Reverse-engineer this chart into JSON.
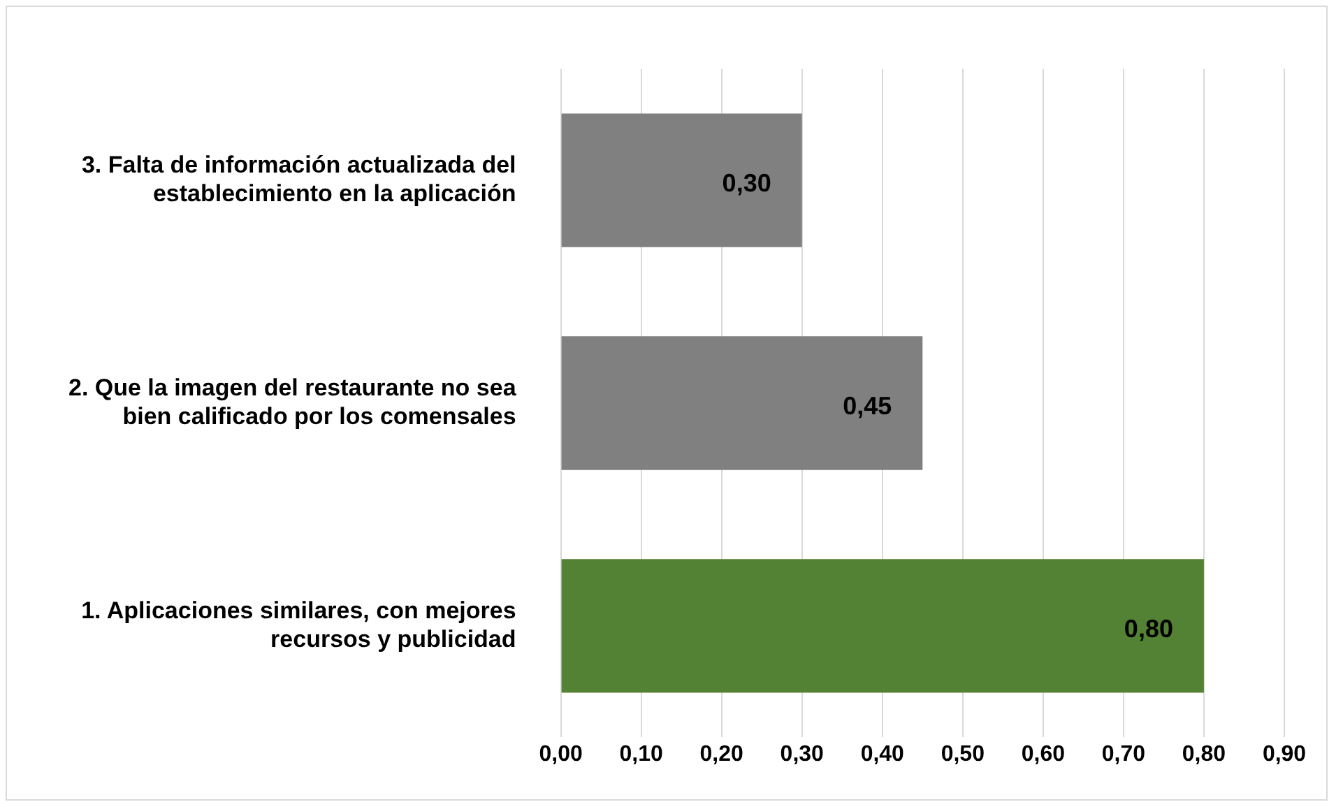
{
  "chart_data": {
    "type": "bar",
    "orientation": "horizontal",
    "categories": [
      "3. Falta de información actualizada del establecimiento en la aplicación",
      "2. Que la imagen del restaurante no sea bien calificado por los comensales",
      "1. Aplicaciones similares, con mejores recursos y publicidad"
    ],
    "values": [
      0.3,
      0.45,
      0.8
    ],
    "colors": [
      "#808080",
      "#808080",
      "#548235"
    ],
    "value_labels": [
      "0,30",
      "0,45",
      "0,80"
    ],
    "xlim": [
      0,
      0.9
    ],
    "xticks": [
      {
        "value": 0,
        "label": "0,00"
      },
      {
        "value": 0.1,
        "label": "0,10"
      },
      {
        "value": 0.2,
        "label": "0,20"
      },
      {
        "value": 0.3,
        "label": "0,30"
      },
      {
        "value": 0.4,
        "label": "0,40"
      },
      {
        "value": 0.5,
        "label": "0,50"
      },
      {
        "value": 0.6,
        "label": "0,60"
      },
      {
        "value": 0.7,
        "label": "0,70"
      },
      {
        "value": 0.8,
        "label": "0,80"
      },
      {
        "value": 0.9,
        "label": "0,90"
      }
    ],
    "grid": "x"
  }
}
